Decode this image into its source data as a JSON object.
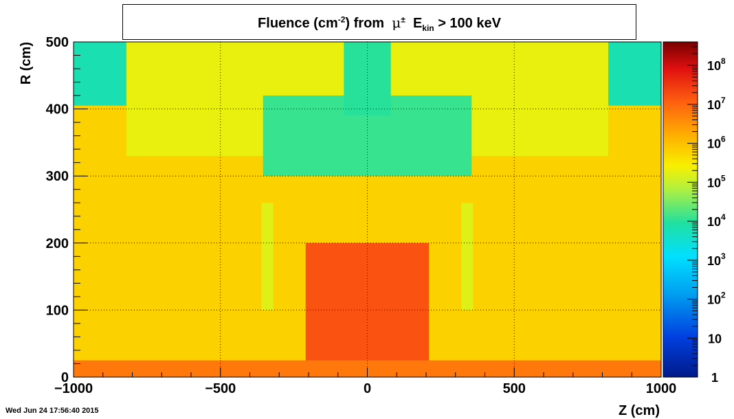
{
  "title": {
    "prefix": "Fluence (cm",
    "exp": "-2",
    "middle": ") from",
    "particle": "μ",
    "particle_sup": "±",
    "energy": "E",
    "energy_sub": "kin",
    "suffix": "> 100 keV"
  },
  "footer": {
    "timestamp": "Wed Jun 24 17:56:40 2015"
  },
  "chart_data": {
    "type": "heatmap",
    "xlabel": "Z (cm)",
    "ylabel": "R (cm)",
    "xlim": [
      -1000,
      1000
    ],
    "ylim": [
      0,
      500
    ],
    "x_ticks": [
      -1000,
      -500,
      0,
      500,
      1000
    ],
    "x_tick_labels": [
      "−1000",
      "−500",
      "0",
      "500",
      "1000"
    ],
    "y_ticks": [
      0,
      100,
      200,
      300,
      400,
      500
    ],
    "y_tick_labels": [
      "0",
      "100",
      "200",
      "300",
      "400",
      "500"
    ],
    "grid": true,
    "colorbar": {
      "scale": "log",
      "range": [
        1,
        400000000
      ],
      "tick_values": [
        1,
        10,
        100,
        1000,
        10000,
        100000,
        1000000,
        10000000,
        100000000
      ],
      "tick_labels": [
        {
          "base": "1",
          "exp": ""
        },
        {
          "base": "10",
          "exp": ""
        },
        {
          "base": "10",
          "exp": "2"
        },
        {
          "base": "10",
          "exp": "3"
        },
        {
          "base": "10",
          "exp": "4"
        },
        {
          "base": "10",
          "exp": "5"
        },
        {
          "base": "10",
          "exp": "6"
        },
        {
          "base": "10",
          "exp": "7"
        },
        {
          "base": "10",
          "exp": "8"
        }
      ]
    },
    "regions": [
      {
        "name": "background",
        "z": [
          -1000,
          1000
        ],
        "r": [
          0,
          500
        ],
        "log10_fluence": 5.8
      },
      {
        "name": "upper-band",
        "z": [
          -820,
          820
        ],
        "r": [
          330,
          500
        ],
        "log10_fluence": 5.3
      },
      {
        "name": "outer-cavity-left",
        "z": [
          -1000,
          -820
        ],
        "r": [
          405,
          500
        ],
        "log10_fluence": 3.8
      },
      {
        "name": "outer-cavity-right",
        "z": [
          820,
          1000
        ],
        "r": [
          405,
          500
        ],
        "log10_fluence": 3.8
      },
      {
        "name": "inner-cavity",
        "z": [
          -355,
          355
        ],
        "r": [
          300,
          420
        ],
        "log10_fluence": 4.1
      },
      {
        "name": "inner-cavity-top",
        "z": [
          -80,
          80
        ],
        "r": [
          390,
          500
        ],
        "log10_fluence": 4.0
      },
      {
        "name": "side-strip-left",
        "z": [
          -360,
          -320
        ],
        "r": [
          100,
          260
        ],
        "log10_fluence": 5.2
      },
      {
        "name": "side-strip-right",
        "z": [
          320,
          360
        ],
        "r": [
          100,
          260
        ],
        "log10_fluence": 5.2
      },
      {
        "name": "core",
        "z": [
          -210,
          210
        ],
        "r": [
          0,
          200
        ],
        "log10_fluence": 7.2
      },
      {
        "name": "beam-line",
        "z": [
          -1000,
          1000
        ],
        "r": [
          0,
          25
        ],
        "log10_fluence": 6.8
      }
    ]
  }
}
